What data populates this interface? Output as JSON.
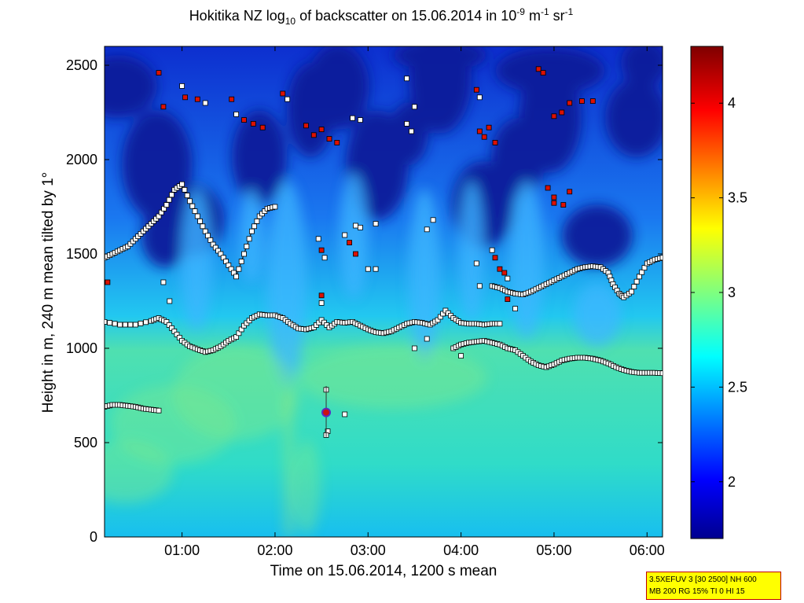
{
  "title": {
    "prefix": "Hokitika NZ log",
    "log_base": "10",
    "middle": " of backscatter on 15.06.2014 in 10",
    "exp1": "-9",
    "unit_m": " m",
    "exp2": "-1",
    "unit_sr": " sr",
    "exp3": "-1"
  },
  "info_box": {
    "line1": "3.5XEFUV 3 [30 2500] NH 600",
    "line2": "MB 200 RG 15% TI 0 HI 15"
  },
  "colors": {
    "marker_white": "#ffffff",
    "marker_red": "#dd1100",
    "marker_edge": "#000000",
    "special_marker": "#cc1111",
    "special_ring": "#5a2cc0"
  },
  "chart_data": {
    "type": "heatmap",
    "xlabel": "Time on 15.06.2014, 1200 s mean",
    "ylabel": "Height in m, 240 m mean tilted by 1°",
    "x_range": [
      "00:10",
      "06:10"
    ],
    "xlim_minutes": [
      10,
      370
    ],
    "ylim": [
      0,
      2600
    ],
    "xticks": [
      {
        "minutes": 60,
        "label": "01:00"
      },
      {
        "minutes": 120,
        "label": "02:00"
      },
      {
        "minutes": 180,
        "label": "03:00"
      },
      {
        "minutes": 240,
        "label": "04:00"
      },
      {
        "minutes": 300,
        "label": "05:00"
      },
      {
        "minutes": 360,
        "label": "06:00"
      }
    ],
    "yticks": [
      0,
      500,
      1000,
      1500,
      2000,
      2500
    ],
    "colorbar": {
      "range": [
        1.7,
        4.3
      ],
      "ticks": [
        2,
        2.5,
        3,
        3.5,
        4
      ],
      "colormap": "jet"
    },
    "cloud_base_series": [
      [
        10,
        1140
      ],
      [
        20,
        1125
      ],
      [
        30,
        1125
      ],
      [
        40,
        1145
      ],
      [
        45,
        1160
      ],
      [
        50,
        1140
      ],
      [
        55,
        1090
      ],
      [
        60,
        1040
      ],
      [
        65,
        1010
      ],
      [
        70,
        995
      ],
      [
        75,
        980
      ],
      [
        80,
        990
      ],
      [
        85,
        1010
      ],
      [
        90,
        1040
      ],
      [
        95,
        1060
      ],
      [
        100,
        1120
      ],
      [
        105,
        1160
      ],
      [
        110,
        1180
      ],
      [
        115,
        1175
      ],
      [
        120,
        1175
      ],
      [
        125,
        1160
      ],
      [
        130,
        1130
      ],
      [
        135,
        1105
      ],
      [
        140,
        1100
      ],
      [
        145,
        1110
      ],
      [
        150,
        1150
      ],
      [
        155,
        1110
      ],
      [
        160,
        1140
      ],
      [
        165,
        1135
      ],
      [
        170,
        1140
      ],
      [
        175,
        1120
      ],
      [
        180,
        1100
      ],
      [
        185,
        1085
      ],
      [
        190,
        1080
      ],
      [
        195,
        1090
      ],
      [
        200,
        1110
      ],
      [
        205,
        1130
      ],
      [
        210,
        1140
      ],
      [
        215,
        1135
      ],
      [
        220,
        1125
      ],
      [
        225,
        1150
      ],
      [
        230,
        1200
      ],
      [
        235,
        1160
      ],
      [
        240,
        1135
      ],
      [
        245,
        1130
      ],
      [
        250,
        1130
      ],
      [
        255,
        1125
      ],
      [
        260,
        1130
      ],
      [
        265,
        1130
      ]
    ],
    "lower_layer_series": [
      [
        235,
        1000
      ],
      [
        240,
        1020
      ],
      [
        245,
        1030
      ],
      [
        250,
        1035
      ],
      [
        255,
        1040
      ],
      [
        260,
        1030
      ],
      [
        265,
        1020
      ],
      [
        270,
        1000
      ],
      [
        275,
        990
      ],
      [
        280,
        960
      ],
      [
        285,
        930
      ],
      [
        290,
        910
      ],
      [
        295,
        900
      ],
      [
        300,
        915
      ],
      [
        305,
        935
      ],
      [
        310,
        945
      ],
      [
        315,
        950
      ],
      [
        320,
        950
      ],
      [
        325,
        945
      ],
      [
        330,
        935
      ],
      [
        335,
        920
      ],
      [
        340,
        900
      ],
      [
        345,
        885
      ],
      [
        350,
        875
      ],
      [
        355,
        870
      ],
      [
        360,
        870
      ],
      [
        365,
        870
      ],
      [
        370,
        868
      ]
    ],
    "upper_layer_series": [
      [
        260,
        1330
      ],
      [
        265,
        1320
      ],
      [
        270,
        1300
      ],
      [
        275,
        1290
      ],
      [
        280,
        1285
      ],
      [
        285,
        1300
      ],
      [
        290,
        1320
      ],
      [
        295,
        1340
      ],
      [
        300,
        1360
      ],
      [
        305,
        1380
      ],
      [
        310,
        1400
      ],
      [
        315,
        1420
      ],
      [
        320,
        1430
      ],
      [
        325,
        1435
      ],
      [
        330,
        1430
      ],
      [
        335,
        1400
      ],
      [
        338,
        1340
      ],
      [
        342,
        1290
      ],
      [
        345,
        1270
      ],
      [
        350,
        1300
      ],
      [
        355,
        1380
      ],
      [
        360,
        1450
      ],
      [
        365,
        1470
      ],
      [
        370,
        1480
      ]
    ],
    "low_cloud_series": [
      [
        10,
        690
      ],
      [
        15,
        700
      ],
      [
        20,
        700
      ],
      [
        25,
        695
      ],
      [
        30,
        690
      ],
      [
        35,
        680
      ],
      [
        40,
        675
      ],
      [
        45,
        670
      ]
    ],
    "rising_layer_series": [
      [
        10,
        1480
      ],
      [
        15,
        1500
      ],
      [
        20,
        1520
      ],
      [
        25,
        1540
      ],
      [
        30,
        1580
      ],
      [
        35,
        1620
      ],
      [
        40,
        1660
      ],
      [
        45,
        1700
      ],
      [
        50,
        1760
      ],
      [
        55,
        1840
      ],
      [
        60,
        1870
      ],
      [
        65,
        1780
      ],
      [
        70,
        1700
      ],
      [
        75,
        1620
      ],
      [
        80,
        1550
      ],
      [
        85,
        1500
      ],
      [
        90,
        1440
      ],
      [
        95,
        1380
      ],
      [
        100,
        1500
      ],
      [
        105,
        1620
      ],
      [
        110,
        1700
      ],
      [
        115,
        1740
      ],
      [
        120,
        1750
      ]
    ],
    "special_point": {
      "minutes": 153,
      "height": 660
    }
  }
}
